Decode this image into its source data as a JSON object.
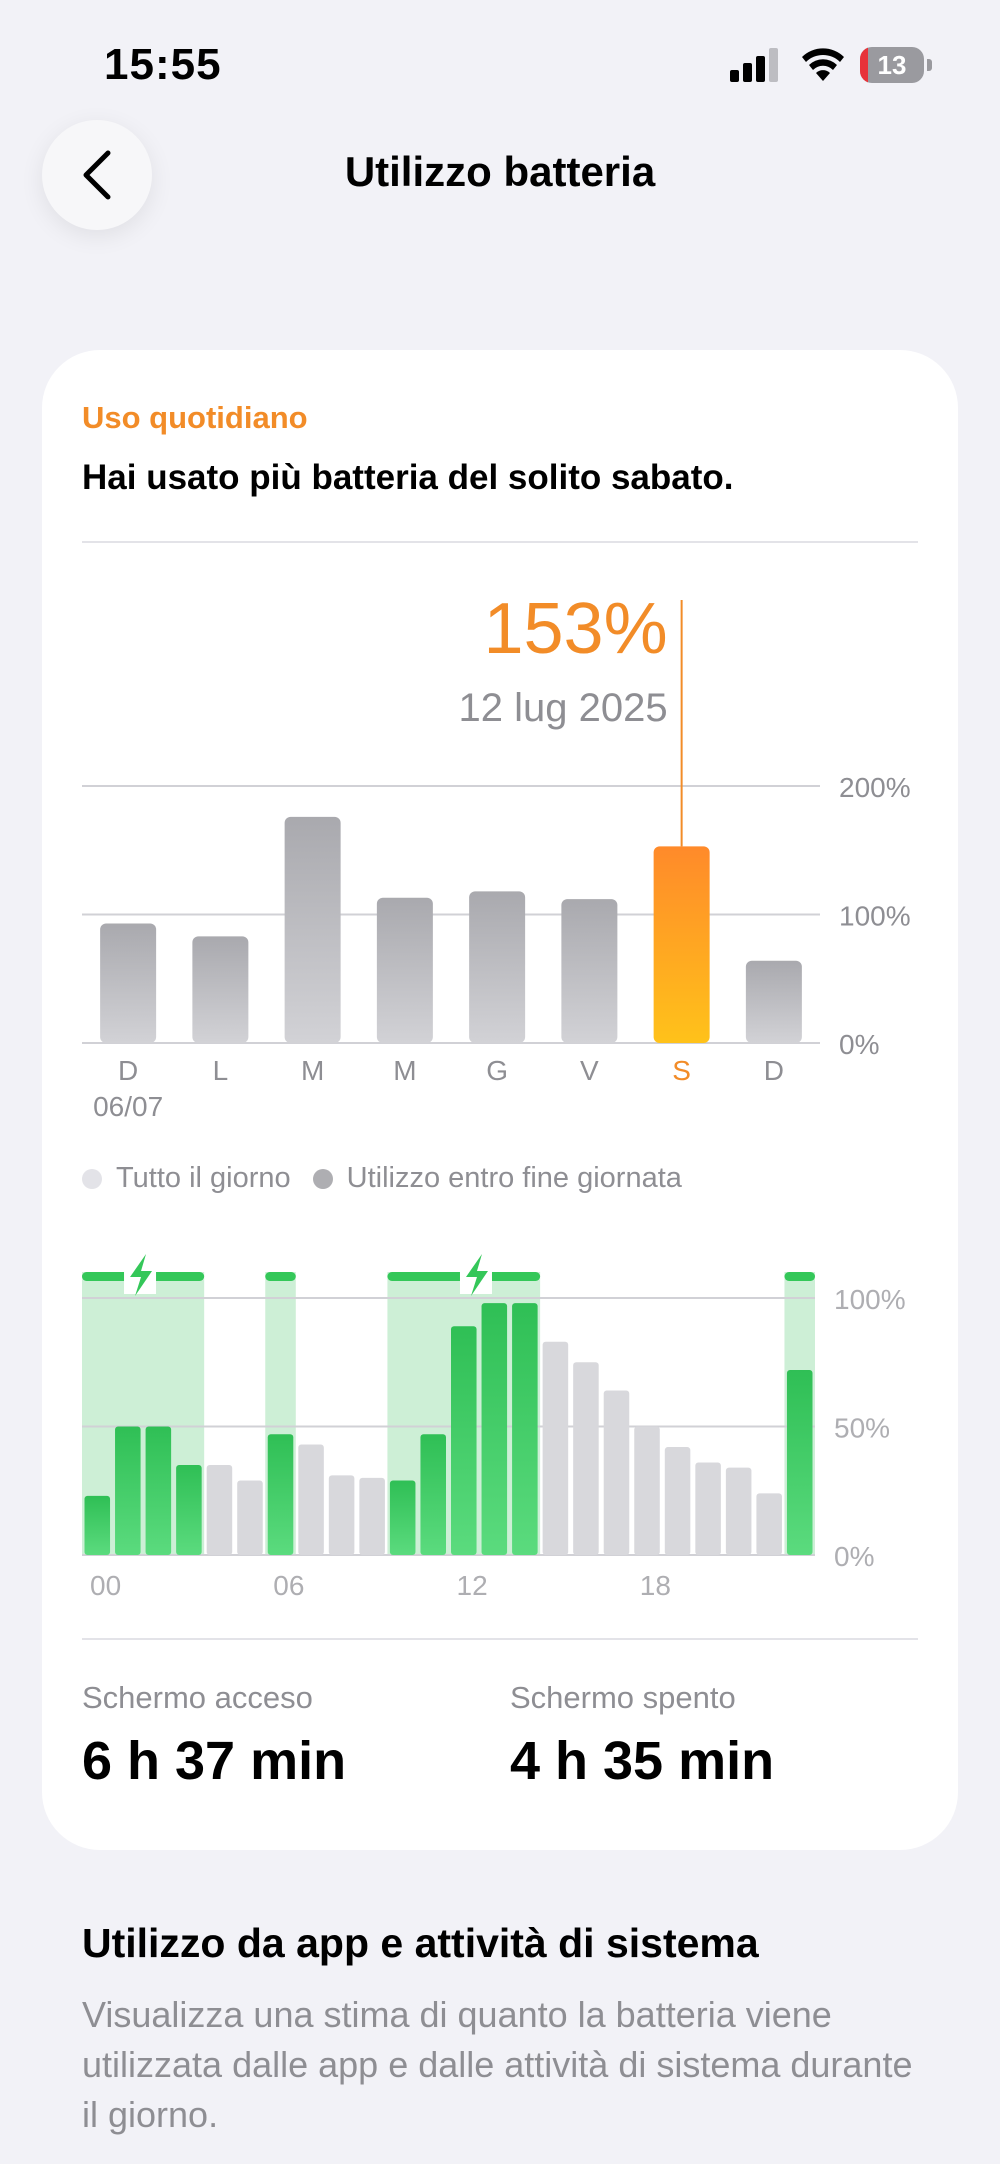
{
  "status_bar": {
    "time": "15:55",
    "battery_level": "13",
    "battery_fraction": 0.13
  },
  "nav": {
    "title": "Utilizzo batteria"
  },
  "card": {
    "kicker": "Uso quotidiano",
    "headline": "Hai usato più batteria del solito sabato.",
    "highlight": {
      "value": "153%",
      "date": "12 lug 2025"
    },
    "legend": [
      {
        "label": "Tutto il giorno",
        "color": "#E3E3E8"
      },
      {
        "label": "Utilizzo entro fine giornata",
        "color": "#AEAEB2"
      }
    ],
    "screen_on": {
      "label": "Schermo acceso",
      "value": "6 h 37 min"
    },
    "screen_off": {
      "label": "Schermo spento",
      "value": "4 h 35 min"
    }
  },
  "section": {
    "title": "Utilizzo da app e attività di sistema",
    "description": "Visualizza una stima di quanto la batteria viene utilizzata dalle app e dalle attività di sistema durante il giorno."
  },
  "colors": {
    "accent": "#F28C28",
    "charging_green": "#34C759",
    "gray_bar": "#B2B2B7",
    "light_bar": "#D8D8DC"
  },
  "chart_data": [
    {
      "type": "bar",
      "categories": [
        "D",
        "L",
        "M",
        "M",
        "G",
        "V",
        "S",
        "D"
      ],
      "sublabels": [
        "06/07",
        "",
        "",
        "",
        "",
        "",
        "",
        ""
      ],
      "values": [
        93,
        83,
        176,
        113,
        118,
        112,
        153,
        64
      ],
      "highlight_index": 6,
      "yticks": [
        "0%",
        "100%",
        "200%"
      ],
      "ylim": [
        0,
        200
      ]
    },
    {
      "type": "bar",
      "x_ticks": [
        "00",
        "06",
        "12",
        "18"
      ],
      "yticks": [
        "0%",
        "50%",
        "100%"
      ],
      "ylim": [
        0,
        100
      ],
      "values": [
        23,
        50,
        50,
        35,
        35,
        29,
        47,
        43,
        31,
        30,
        29,
        47,
        89,
        98,
        98,
        83,
        75,
        64,
        50,
        42,
        36,
        34,
        24,
        72
      ],
      "charging": [
        true,
        true,
        true,
        true,
        false,
        false,
        true,
        false,
        false,
        false,
        true,
        true,
        true,
        true,
        true,
        false,
        false,
        false,
        false,
        false,
        false,
        false,
        false,
        true
      ],
      "charging_ranges": [
        [
          0,
          4
        ],
        [
          6,
          7
        ],
        [
          10,
          15
        ],
        [
          23,
          24
        ]
      ],
      "charging_icon_positions": [
        1.9,
        12.9
      ]
    }
  ]
}
